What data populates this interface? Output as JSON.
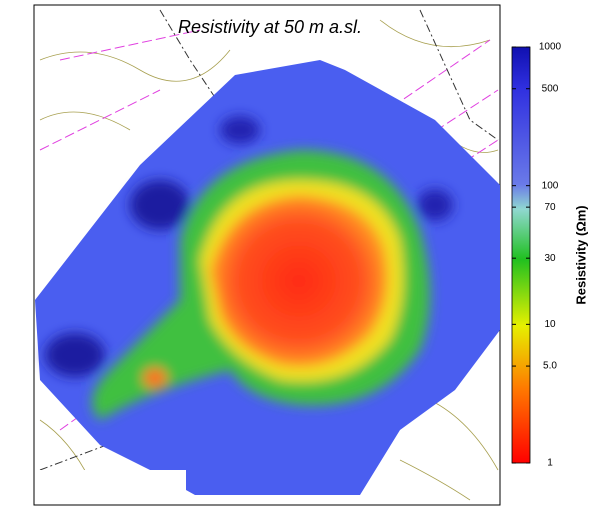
{
  "chart_data": {
    "type": "map",
    "title": "Resistivity at 50 m a.sl.",
    "colorbar": {
      "label": "Resistivity (Ωm)",
      "log_scale": true,
      "clim": [
        1,
        1000
      ],
      "ticks": [
        1,
        {
          "value": 5,
          "label": "5.0"
        },
        10,
        30,
        70,
        100,
        500,
        1000
      ]
    }
  }
}
